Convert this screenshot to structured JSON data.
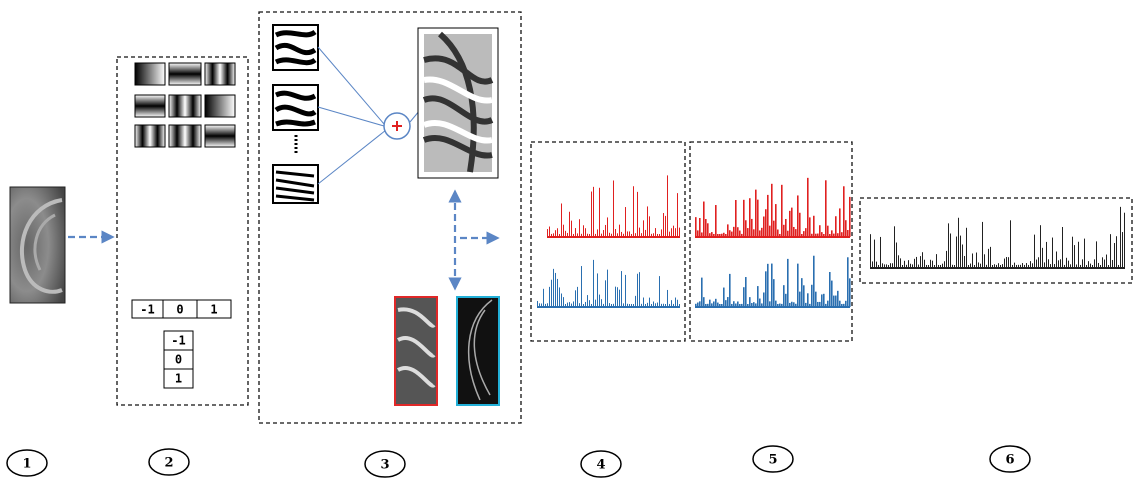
{
  "kernels": {
    "horizontal": [
      -1,
      0,
      1
    ],
    "vertical": [
      -1,
      0,
      1
    ]
  },
  "steps": [
    "1",
    "2",
    "3",
    "4",
    "5",
    "6"
  ]
}
